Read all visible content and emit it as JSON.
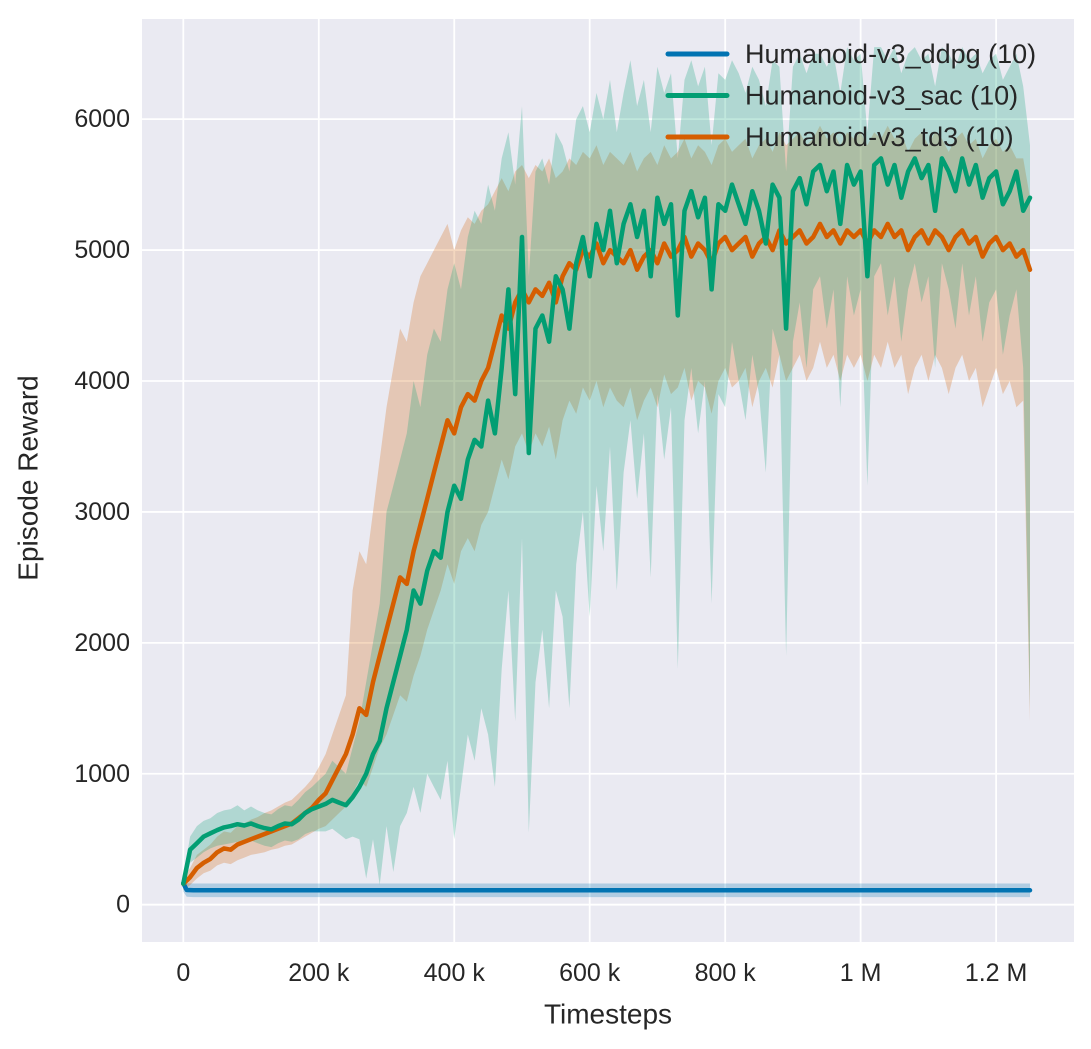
{
  "figure": {
    "background": "#ffffff",
    "plot_background": "#eaeaf2",
    "grid_color": "#ffffff",
    "text_color": "#262626"
  },
  "chart_data": {
    "type": "line",
    "title": "",
    "xlabel": "Timesteps",
    "ylabel": "Episode Reward",
    "xlim": [
      -61000,
      1315000
    ],
    "ylim": [
      -285,
      6765
    ],
    "grid": true,
    "legend_position": "upper right",
    "band_alpha": 0.25,
    "x_ticks": [
      {
        "v": 0,
        "label": "0"
      },
      {
        "v": 200000,
        "label": "200 k"
      },
      {
        "v": 400000,
        "label": "400 k"
      },
      {
        "v": 600000,
        "label": "600 k"
      },
      {
        "v": 800000,
        "label": "800 k"
      },
      {
        "v": 1000000,
        "label": "1 M"
      },
      {
        "v": 1200000,
        "label": "1.2 M"
      }
    ],
    "y_ticks": [
      {
        "v": 0,
        "label": "0"
      },
      {
        "v": 1000,
        "label": "1000"
      },
      {
        "v": 2000,
        "label": "2000"
      },
      {
        "v": 3000,
        "label": "3000"
      },
      {
        "v": 4000,
        "label": "4000"
      },
      {
        "v": 5000,
        "label": "5000"
      },
      {
        "v": 6000,
        "label": "6000"
      }
    ],
    "series": [
      {
        "name": "Humanoid-v3_ddpg (10)",
        "color": "#0173b2",
        "x": [
          0,
          5000,
          15000,
          1250000
        ],
        "mean": [
          165,
          112,
          110,
          110
        ],
        "lo": [
          100,
          60,
          58,
          58
        ],
        "hi": [
          215,
          165,
          162,
          162
        ]
      },
      {
        "name": "Humanoid-v3_sac (10)",
        "color": "#029e73",
        "x_start": 0,
        "x_step": 10000,
        "mean": [
          160,
          420,
          470,
          520,
          545,
          570,
          590,
          600,
          615,
          605,
          620,
          600,
          585,
          575,
          600,
          620,
          615,
          650,
          700,
          730,
          750,
          770,
          800,
          780,
          760,
          820,
          900,
          1000,
          1150,
          1250,
          1500,
          1700,
          1900,
          2100,
          2400,
          2300,
          2550,
          2700,
          2650,
          3000,
          3200,
          3100,
          3400,
          3550,
          3500,
          3850,
          3600,
          4100,
          4700,
          3900,
          5100,
          3450,
          4400,
          4500,
          4300,
          4800,
          4700,
          4400,
          4900,
          5100,
          4800,
          5200,
          5000,
          5300,
          4900,
          5200,
          5350,
          5100,
          5300,
          4800,
          5400,
          5200,
          5350,
          4500,
          5300,
          5450,
          5250,
          5400,
          4700,
          5350,
          5300,
          5500,
          5350,
          5200,
          5450,
          5300,
          5050,
          5500,
          5400,
          4400,
          5450,
          5550,
          5350,
          5600,
          5650,
          5450,
          5600,
          5200,
          5650,
          5500,
          5600,
          4800,
          5650,
          5700,
          5500,
          5650,
          5400,
          5600,
          5700,
          5550,
          5650,
          5300,
          5700,
          5600,
          5450,
          5700,
          5500,
          5650,
          5400,
          5550,
          5600,
          5350,
          5450,
          5600,
          5300,
          5400
        ],
        "lo": [
          110,
          320,
          360,
          400,
          430,
          450,
          460,
          470,
          480,
          470,
          490,
          470,
          450,
          440,
          470,
          490,
          480,
          500,
          540,
          560,
          560,
          560,
          580,
          540,
          500,
          520,
          500,
          200,
          500,
          150,
          600,
          250,
          600,
          700,
          900,
          700,
          1000,
          900,
          800,
          1100,
          500,
          900,
          1300,
          1100,
          1500,
          1300,
          900,
          1800,
          2400,
          1400,
          2800,
          550,
          1700,
          2100,
          1500,
          2400,
          2200,
          1500,
          2600,
          3000,
          2200,
          3200,
          2700,
          3500,
          2400,
          3300,
          3700,
          3100,
          3600,
          2500,
          3900,
          3400,
          3800,
          1800,
          3700,
          4100,
          3600,
          4000,
          2300,
          3900,
          3800,
          4300,
          4000,
          3700,
          4200,
          3900,
          3300,
          4400,
          4200,
          1900,
          4300,
          4600,
          4100,
          4700,
          4800,
          4400,
          4700,
          3800,
          4800,
          4500,
          4700,
          3200,
          4800,
          4900,
          4500,
          4800,
          4300,
          4700,
          4900,
          4600,
          4800,
          4100,
          4900,
          4700,
          4400,
          4900,
          4500,
          4800,
          4300,
          4600,
          4700,
          4200,
          4500,
          4700,
          4100,
          1500
        ],
        "hi": [
          210,
          520,
          600,
          640,
          660,
          700,
          720,
          730,
          760,
          720,
          750,
          720,
          700,
          690,
          730,
          760,
          750,
          800,
          860,
          900,
          950,
          1000,
          1100,
          1050,
          1000,
          1200,
          1400,
          1700,
          2000,
          2300,
          3000,
          3200,
          3400,
          3600,
          4000,
          3800,
          4200,
          4400,
          4300,
          4700,
          4900,
          4700,
          5100,
          5300,
          5200,
          5500,
          5300,
          5700,
          5900,
          5500,
          6100,
          4800,
          5600,
          5700,
          5500,
          5900,
          5800,
          5600,
          6000,
          6100,
          5900,
          6200,
          6000,
          6300,
          5900,
          6200,
          6450,
          6100,
          6300,
          5900,
          6400,
          6200,
          6350,
          5700,
          6300,
          6450,
          6250,
          6400,
          5800,
          6350,
          6300,
          6450,
          6350,
          6200,
          6400,
          6300,
          6100,
          6450,
          6400,
          5600,
          6400,
          6500,
          6350,
          6500,
          6500,
          6400,
          6500,
          6200,
          6550,
          6450,
          6500,
          5900,
          6550,
          6550,
          6450,
          6550,
          6350,
          6500,
          6550,
          6450,
          6500,
          6250,
          6550,
          6500,
          6400,
          6550,
          6450,
          6500,
          6350,
          6450,
          6500,
          6300,
          6400,
          6500,
          6250,
          5800
        ]
      },
      {
        "name": "Humanoid-v3_td3 (10)",
        "color": "#d55e00",
        "x_start": 0,
        "x_step": 10000,
        "mean": [
          160,
          210,
          280,
          320,
          350,
          400,
          430,
          420,
          460,
          480,
          500,
          520,
          540,
          560,
          580,
          600,
          620,
          660,
          700,
          740,
          800,
          850,
          950,
          1050,
          1150,
          1300,
          1500,
          1450,
          1700,
          1900,
          2100,
          2300,
          2500,
          2450,
          2700,
          2900,
          3100,
          3300,
          3500,
          3700,
          3600,
          3800,
          3900,
          3850,
          4000,
          4100,
          4300,
          4500,
          4400,
          4600,
          4700,
          4600,
          4700,
          4650,
          4750,
          4600,
          4800,
          4900,
          4850,
          5000,
          4950,
          5050,
          4900,
          5000,
          4950,
          4900,
          5000,
          4850,
          4950,
          5000,
          4900,
          5050,
          4950,
          5000,
          5100,
          4950,
          5050,
          5000,
          4900,
          5050,
          5100,
          5000,
          5050,
          5100,
          4950,
          5050,
          5100,
          5000,
          5150,
          5050,
          5100,
          5150,
          5050,
          5100,
          5200,
          5100,
          5150,
          5050,
          5150,
          5100,
          5150,
          5050,
          5150,
          5100,
          5200,
          5100,
          5150,
          5000,
          5100,
          5150,
          5050,
          5150,
          5100,
          5000,
          5100,
          5150,
          5050,
          5100,
          4950,
          5050,
          5100,
          5000,
          5050,
          4950,
          5000,
          4850
        ],
        "lo": [
          110,
          150,
          200,
          240,
          260,
          300,
          320,
          310,
          340,
          360,
          380,
          390,
          400,
          420,
          430,
          450,
          460,
          490,
          520,
          550,
          580,
          600,
          650,
          700,
          750,
          850,
          950,
          900,
          1050,
          1200,
          1300,
          1450,
          1600,
          1550,
          1750,
          1900,
          2100,
          2250,
          2400,
          2600,
          2450,
          2700,
          2800,
          2700,
          2900,
          3000,
          3200,
          3400,
          3250,
          3500,
          3600,
          3450,
          3600,
          3500,
          3650,
          3400,
          3700,
          3850,
          3750,
          3950,
          3850,
          4000,
          3800,
          3950,
          3850,
          3800,
          3950,
          3700,
          3850,
          3950,
          3800,
          4050,
          3900,
          3950,
          4100,
          3850,
          4000,
          3950,
          3750,
          4000,
          4100,
          3950,
          4000,
          4100,
          3800,
          4000,
          4100,
          3950,
          4200,
          4000,
          4100,
          4200,
          4000,
          4100,
          4300,
          4100,
          4200,
          4000,
          4200,
          4100,
          4200,
          4000,
          4200,
          4100,
          4300,
          4100,
          4200,
          3900,
          4100,
          4200,
          4000,
          4200,
          4100,
          3900,
          4100,
          4200,
          4000,
          4100,
          3800,
          3950,
          4100,
          3900,
          4000,
          3800,
          3850,
          1400
        ],
        "hi": [
          210,
          280,
          380,
          420,
          460,
          520,
          560,
          550,
          600,
          620,
          650,
          670,
          700,
          720,
          750,
          780,
          800,
          850,
          900,
          960,
          1050,
          1150,
          1300,
          1450,
          1600,
          2400,
          2700,
          2600,
          3000,
          3400,
          3800,
          4100,
          4400,
          4300,
          4600,
          4800,
          4900,
          5000,
          5100,
          5200,
          5000,
          5150,
          5250,
          5200,
          5300,
          5350,
          5450,
          5550,
          5450,
          5600,
          5650,
          5550,
          5650,
          5600,
          5700,
          5550,
          5600,
          5700,
          5650,
          5750,
          5700,
          5800,
          5650,
          5750,
          5700,
          5650,
          5750,
          5600,
          5700,
          5750,
          5650,
          5800,
          5700,
          5750,
          5850,
          5700,
          5800,
          5750,
          5650,
          5800,
          5850,
          5750,
          5800,
          5850,
          5700,
          5800,
          5850,
          5750,
          5900,
          5800,
          5850,
          5900,
          5800,
          5850,
          5950,
          5850,
          5900,
          5800,
          5900,
          5850,
          5900,
          5800,
          5900,
          5850,
          5950,
          5850,
          5900,
          5750,
          5850,
          5900,
          5800,
          5900,
          5850,
          5750,
          5850,
          5900,
          5800,
          5850,
          5700,
          5800,
          5850,
          5750,
          5800,
          5700,
          5700,
          5400
        ]
      }
    ]
  }
}
